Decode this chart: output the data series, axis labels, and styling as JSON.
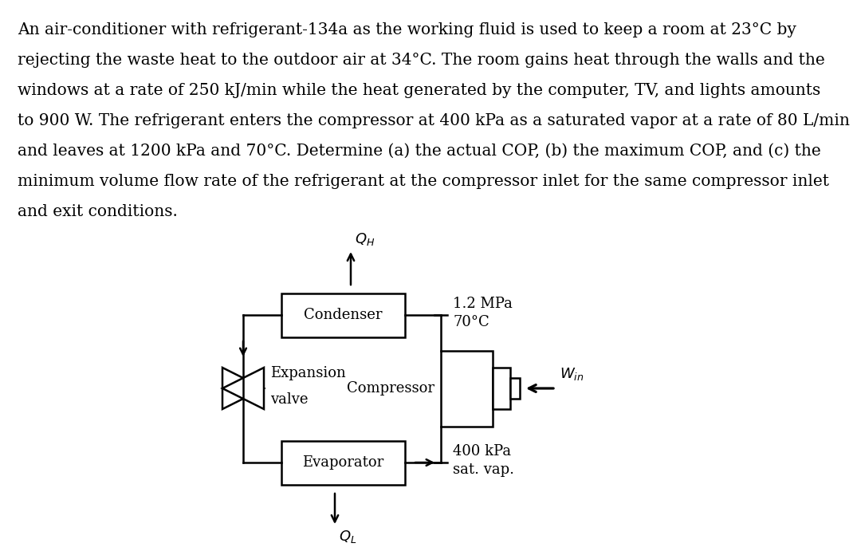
{
  "background_color": "#ffffff",
  "text_color": "#000000",
  "lines": [
    "An air-conditioner with refrigerant-134a as the working fluid is used to keep a room at 23°C by",
    "rejecting the waste heat to the outdoor air at 34°C. The room gains heat through the walls and the",
    "windows at a rate of 250 kJ/min while the heat generated by the computer, TV, and lights amounts",
    "to 900 W. The refrigerant enters the compressor at 400 kPa as a saturated vapor at a rate of 80 L/min",
    "and leaves at 1200 kPa and 70°C. Determine (a) the actual COP, (b) the maximum COP, and (c) the",
    "minimum volume flow rate of the refrigerant at the compressor inlet for the same compressor inlet",
    "and exit conditions."
  ],
  "condenser_label": "Condenser",
  "evaporator_label": "Evaporator",
  "compressor_label": "Compressor",
  "expansion_label_1": "Expansion",
  "expansion_label_2": "valve",
  "QH_label": "$Q_H$",
  "QL_label": "$Q_L$",
  "Win_label": "$W_{in}$",
  "pressure_high": "1.2 MPa",
  "temp_high": "70°C",
  "pressure_low": "400 kPa",
  "state_low": "sat. vap."
}
